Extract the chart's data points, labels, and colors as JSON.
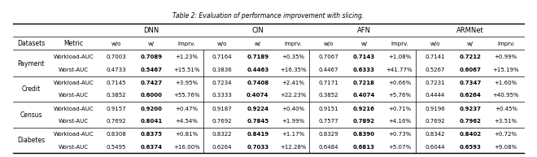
{
  "title": "Table 2: Evaluation of performance improvement with slicing.",
  "col_groups": [
    "DNN",
    "CIN",
    "AFN",
    "ARMNet"
  ],
  "sub_cols": [
    "w/o",
    "w/",
    "Imprv."
  ],
  "row_headers": [
    "Datasets",
    "Metric"
  ],
  "datasets": [
    "Payment",
    "Credit",
    "Census",
    "Diabetes"
  ],
  "metrics": [
    "Workload-AUC",
    "Worst-AUC"
  ],
  "data": {
    "Payment": {
      "Workload-AUC": {
        "DNN": [
          "0.7003",
          "0.7089",
          "+1.23%"
        ],
        "CIN": [
          "0.7164",
          "0.7189",
          "+0.35%"
        ],
        "AFN": [
          "0.7067",
          "0.7143",
          "+1.08%"
        ],
        "ARMNet": [
          "0.7141",
          "0.7212",
          "+0.99%"
        ]
      },
      "Worst-AUC": {
        "DNN": [
          "0.4733",
          "0.5467",
          "+15.51%"
        ],
        "CIN": [
          "0.3836",
          "0.4463",
          "+16.35%"
        ],
        "AFN": [
          "0.4467",
          "0.6333",
          "+41.77%"
        ],
        "ARMNet": [
          "0.5267",
          "0.6067",
          "+15.19%"
        ]
      }
    },
    "Credit": {
      "Workload-AUC": {
        "DNN": [
          "0.7145",
          "0.7427",
          "+3.95%"
        ],
        "CIN": [
          "0.7234",
          "0.7408",
          "+2.41%"
        ],
        "AFN": [
          "0.7171",
          "0.7218",
          "+0.66%"
        ],
        "ARMNet": [
          "0.7231",
          "0.7347",
          "+1.60%"
        ]
      },
      "Worst-AUC": {
        "DNN": [
          "0.3852",
          "0.6000",
          "+55.76%"
        ],
        "CIN": [
          "0.3333",
          "0.4074",
          "+22.23%"
        ],
        "AFN": [
          "0.3852",
          "0.4074",
          "+5.76%"
        ],
        "ARMNet": [
          "0.4444",
          "0.6264",
          "+40.95%"
        ]
      }
    },
    "Census": {
      "Workload-AUC": {
        "DNN": [
          "0.9157",
          "0.9200",
          "+0.47%"
        ],
        "CIN": [
          "0.9187",
          "0.9224",
          "+0.40%"
        ],
        "AFN": [
          "0.9151",
          "0.9216",
          "+0.71%"
        ],
        "ARMNet": [
          "0.9196",
          "0.9237",
          "+0.45%"
        ]
      },
      "Worst-AUC": {
        "DNN": [
          "0.7692",
          "0.8041",
          "+4.54%"
        ],
        "CIN": [
          "0.7692",
          "0.7845",
          "+1.99%"
        ],
        "AFN": [
          "0.7577",
          "0.7892",
          "+4.16%"
        ],
        "ARMNet": [
          "0.7692",
          "0.7962",
          "+3.51%"
        ]
      }
    },
    "Diabetes": {
      "Workload-AUC": {
        "DNN": [
          "0.8308",
          "0.8375",
          "+0.81%"
        ],
        "CIN": [
          "0.8322",
          "0.8419",
          "+1.17%"
        ],
        "AFN": [
          "0.8329",
          "0.8390",
          "+0.73%"
        ],
        "ARMNet": [
          "0.8342",
          "0.8402",
          "+0.72%"
        ]
      },
      "Worst-AUC": {
        "DNN": [
          "0.5495",
          "0.6374",
          "+16.00%"
        ],
        "CIN": [
          "0.6264",
          "0.7033",
          "+12.28%"
        ],
        "AFN": [
          "0.6484",
          "0.6813",
          "+5.07%"
        ],
        "ARMNet": [
          "0.6044",
          "0.6593",
          "+9.08%"
        ]
      }
    }
  }
}
